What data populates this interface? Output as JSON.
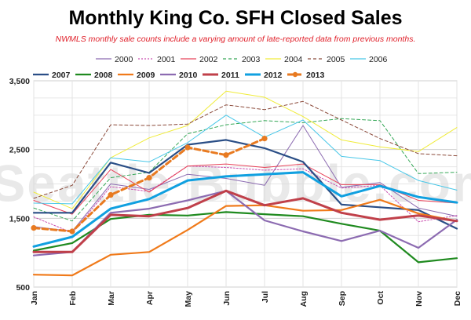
{
  "chart_data": {
    "type": "line",
    "title": "Monthly King Co. SFH Closed Sales",
    "subtitle": "NWMLS monthly sale counts include a varying amount of late-reported  data from previous months.",
    "watermark": "Seattle Bubble.com",
    "categories": [
      "Jan",
      "Feb",
      "Mar",
      "Apr",
      "May",
      "Jun",
      "Jul",
      "Aug",
      "Sep",
      "Oct",
      "Nov",
      "Dec"
    ],
    "y_ticks": [
      "3,500",
      "2,500",
      "1,500",
      "500"
    ],
    "ylim": [
      500,
      3500
    ],
    "grid": true,
    "legend_position": "top",
    "series": [
      {
        "name": "2000",
        "color": "#8c6bb1",
        "dash": "solid",
        "width": 1,
        "marker": false,
        "values": [
          1380,
          1310,
          2000,
          1920,
          2140,
          2080,
          1980,
          2850,
          1950,
          2020,
          1650,
          1530
        ]
      },
      {
        "name": "2001",
        "color": "#c94fb0",
        "dash": "dotted",
        "width": 1,
        "marker": false,
        "values": [
          1520,
          1290,
          1960,
          1890,
          2260,
          2240,
          2200,
          2220,
          1940,
          1980,
          1450,
          1540
        ]
      },
      {
        "name": "2002",
        "color": "#e8435a",
        "dash": "solid",
        "width": 1,
        "marker": false,
        "values": [
          1760,
          1560,
          2210,
          1880,
          2260,
          2290,
          2240,
          2290,
          1990,
          1990,
          1760,
          1720
        ]
      },
      {
        "name": "2003",
        "color": "#37a858",
        "dash": "dashed",
        "width": 1,
        "marker": false,
        "values": [
          1650,
          1460,
          2090,
          2170,
          2730,
          2860,
          2920,
          2890,
          2950,
          2920,
          2150,
          2170
        ]
      },
      {
        "name": "2004",
        "color": "#f0ec3a",
        "dash": "solid",
        "width": 1,
        "marker": false,
        "values": [
          1880,
          1640,
          2380,
          2670,
          2850,
          3350,
          3260,
          2980,
          2640,
          2540,
          2470,
          2820
        ]
      },
      {
        "name": "2005",
        "color": "#8b4a3a",
        "dash": "dashed",
        "width": 1,
        "marker": false,
        "values": [
          1790,
          1980,
          2860,
          2850,
          2870,
          3150,
          3080,
          3200,
          2930,
          2660,
          2440,
          2410
        ]
      },
      {
        "name": "2006",
        "color": "#48c7e8",
        "dash": "solid",
        "width": 1,
        "marker": false,
        "values": [
          1720,
          1710,
          2380,
          2320,
          2600,
          3000,
          2680,
          2930,
          2400,
          2340,
          2050,
          1910
        ]
      },
      {
        "name": "2007",
        "color": "#2a4e86",
        "dash": "solid",
        "width": 2.2,
        "marker": false,
        "values": [
          1580,
          1580,
          2310,
          2160,
          2570,
          2640,
          2520,
          2320,
          1700,
          1660,
          1620,
          1350
        ]
      },
      {
        "name": "2008",
        "color": "#1f8a1f",
        "dash": "solid",
        "width": 2.2,
        "marker": false,
        "values": [
          1030,
          1140,
          1490,
          1550,
          1540,
          1590,
          1560,
          1530,
          1420,
          1320,
          860,
          920
        ]
      },
      {
        "name": "2009",
        "color": "#f07a1a",
        "dash": "solid",
        "width": 2.2,
        "marker": false,
        "values": [
          680,
          670,
          970,
          1010,
          1330,
          1680,
          1690,
          1610,
          1620,
          1770,
          1570,
          1460
        ]
      },
      {
        "name": "2010",
        "color": "#8c6bb1",
        "dash": "solid",
        "width": 2.2,
        "marker": false,
        "values": [
          960,
          1010,
          1580,
          1640,
          1760,
          1900,
          1470,
          1310,
          1170,
          1320,
          1070,
          1480
        ]
      },
      {
        "name": "2011",
        "color": "#c0404a",
        "dash": "solid",
        "width": 3,
        "marker": false,
        "values": [
          1010,
          1010,
          1550,
          1530,
          1650,
          1900,
          1690,
          1790,
          1580,
          1480,
          1540,
          1460
        ]
      },
      {
        "name": "2012",
        "color": "#10a0e0",
        "dash": "solid",
        "width": 3,
        "marker": false,
        "values": [
          1090,
          1230,
          1640,
          1780,
          2050,
          2110,
          2140,
          2170,
          1820,
          1970,
          1810,
          1730
        ]
      },
      {
        "name": "2013",
        "color": "#e87a20",
        "dash": "dashed",
        "width": 3,
        "marker": true,
        "values": [
          1360,
          1310,
          1840,
          2090,
          2530,
          2420,
          2660,
          null,
          null,
          null,
          null,
          null
        ]
      }
    ]
  }
}
